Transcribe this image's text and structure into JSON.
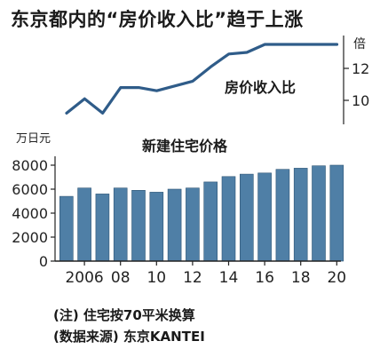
{
  "title": "东京都内的“房价收入比”趋于上涨",
  "charts": {
    "ratio": {
      "type": "line",
      "series_label": "房价收入比",
      "unit": "倍",
      "y_ticks": [
        "12",
        "10"
      ],
      "ylim": [
        9,
        13.5
      ],
      "x": [
        2005,
        2006,
        2007,
        2008,
        2009,
        2010,
        2011,
        2012,
        2013,
        2014,
        2015,
        2016,
        2017,
        2018,
        2019,
        2020
      ],
      "values": [
        9.2,
        10.1,
        9.2,
        10.8,
        10.8,
        10.6,
        10.9,
        11.2,
        12.1,
        12.9,
        13.0,
        13.5,
        13.5,
        13.5,
        13.5,
        13.5
      ],
      "color": "#2f5c89"
    },
    "price": {
      "type": "bar",
      "title": "新建住宅价格",
      "unit": "万日元",
      "y_ticks": [
        "8000",
        "6000",
        "4000",
        "2000",
        "0"
      ],
      "ylim": [
        0,
        8000
      ],
      "x_ticks": [
        "2006",
        "08",
        "10",
        "12",
        "14",
        "16",
        "18",
        "20"
      ],
      "categories": [
        2005,
        2006,
        2007,
        2008,
        2009,
        2010,
        2011,
        2012,
        2013,
        2014,
        2015,
        2016,
        2017,
        2018,
        2019,
        2020
      ],
      "values": [
        5400,
        6100,
        5600,
        6100,
        5900,
        5750,
        6000,
        6100,
        6600,
        7050,
        7250,
        7350,
        7650,
        7750,
        7950,
        8000
      ],
      "color": "#4f7fa6"
    }
  },
  "notes": {
    "note": "(注) 住宅按70平米换算",
    "source": "(数据来源) 东京KANTEI"
  }
}
